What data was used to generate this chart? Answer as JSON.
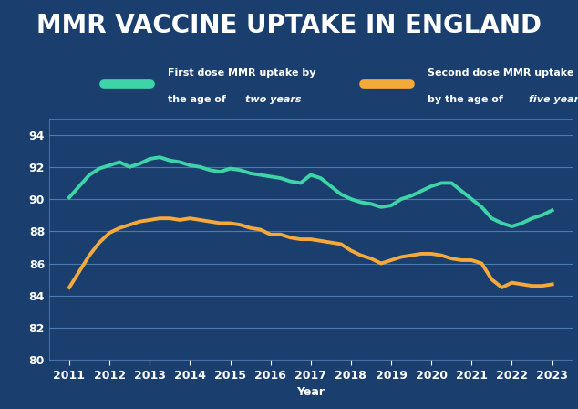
{
  "title": "MMR VACCINE UPTAKE IN ENGLAND",
  "title_color": "#ffffff",
  "title_bg_color": "#000000",
  "plot_bg_color": "#1a3f6f",
  "legend_bg_color": "#152d55",
  "xlabel": "Year",
  "ylim": [
    80,
    95
  ],
  "yticks": [
    80,
    82,
    84,
    86,
    88,
    90,
    92,
    94
  ],
  "xlim": [
    2010.5,
    2023.5
  ],
  "xticks": [
    2011,
    2012,
    2013,
    2014,
    2015,
    2016,
    2017,
    2018,
    2019,
    2020,
    2021,
    2022,
    2023
  ],
  "line1_color": "#3dd4a8",
  "line2_color": "#f5a93a",
  "line1_label_normal": "First dose MMR uptake by\nthe age of ",
  "line1_label_italic": "two years",
  "line2_label_normal": "Second dose MMR uptake\nby the age of ",
  "line2_label_italic": "five years",
  "line_width": 2.8,
  "first_dose_years": [
    2011,
    2011.25,
    2011.5,
    2011.75,
    2012,
    2012.25,
    2012.5,
    2012.75,
    2013,
    2013.25,
    2013.5,
    2013.75,
    2014,
    2014.25,
    2014.5,
    2014.75,
    2015,
    2015.25,
    2015.5,
    2015.75,
    2016,
    2016.25,
    2016.5,
    2016.75,
    2017,
    2017.25,
    2017.5,
    2017.75,
    2018,
    2018.25,
    2018.5,
    2018.75,
    2019,
    2019.25,
    2019.5,
    2019.75,
    2020,
    2020.25,
    2020.5,
    2020.75,
    2021,
    2021.25,
    2021.5,
    2021.75,
    2022,
    2022.25,
    2022.5,
    2022.75,
    2023
  ],
  "first_dose_values": [
    90.1,
    90.8,
    91.5,
    91.9,
    92.1,
    92.3,
    92.0,
    92.2,
    92.5,
    92.6,
    92.4,
    92.3,
    92.1,
    92.0,
    91.8,
    91.7,
    91.9,
    91.8,
    91.6,
    91.5,
    91.4,
    91.3,
    91.1,
    91.0,
    91.5,
    91.3,
    90.8,
    90.3,
    90.0,
    89.8,
    89.7,
    89.5,
    89.6,
    90.0,
    90.2,
    90.5,
    90.8,
    91.0,
    91.0,
    90.5,
    90.0,
    89.5,
    88.8,
    88.5,
    88.3,
    88.5,
    88.8,
    89.0,
    89.3
  ],
  "second_dose_years": [
    2011,
    2011.25,
    2011.5,
    2011.75,
    2012,
    2012.25,
    2012.5,
    2012.75,
    2013,
    2013.25,
    2013.5,
    2013.75,
    2014,
    2014.25,
    2014.5,
    2014.75,
    2015,
    2015.25,
    2015.5,
    2015.75,
    2016,
    2016.25,
    2016.5,
    2016.75,
    2017,
    2017.25,
    2017.5,
    2017.75,
    2018,
    2018.25,
    2018.5,
    2018.75,
    2019,
    2019.25,
    2019.5,
    2019.75,
    2020,
    2020.25,
    2020.5,
    2020.75,
    2021,
    2021.25,
    2021.5,
    2021.75,
    2022,
    2022.25,
    2022.5,
    2022.75,
    2023
  ],
  "second_dose_values": [
    84.5,
    85.5,
    86.5,
    87.3,
    87.9,
    88.2,
    88.4,
    88.6,
    88.7,
    88.8,
    88.8,
    88.7,
    88.8,
    88.7,
    88.6,
    88.5,
    88.5,
    88.4,
    88.2,
    88.1,
    87.8,
    87.8,
    87.6,
    87.5,
    87.5,
    87.4,
    87.3,
    87.2,
    86.8,
    86.5,
    86.3,
    86.0,
    86.2,
    86.4,
    86.5,
    86.6,
    86.6,
    86.5,
    86.3,
    86.2,
    86.2,
    86.0,
    85.0,
    84.5,
    84.8,
    84.7,
    84.6,
    84.6,
    84.7
  ],
  "grid_color": "#5a8abf",
  "tick_color": "#ffffff",
  "text_color": "#ffffff",
  "title_fontsize": 20,
  "label_fontsize": 8,
  "tick_fontsize": 9
}
